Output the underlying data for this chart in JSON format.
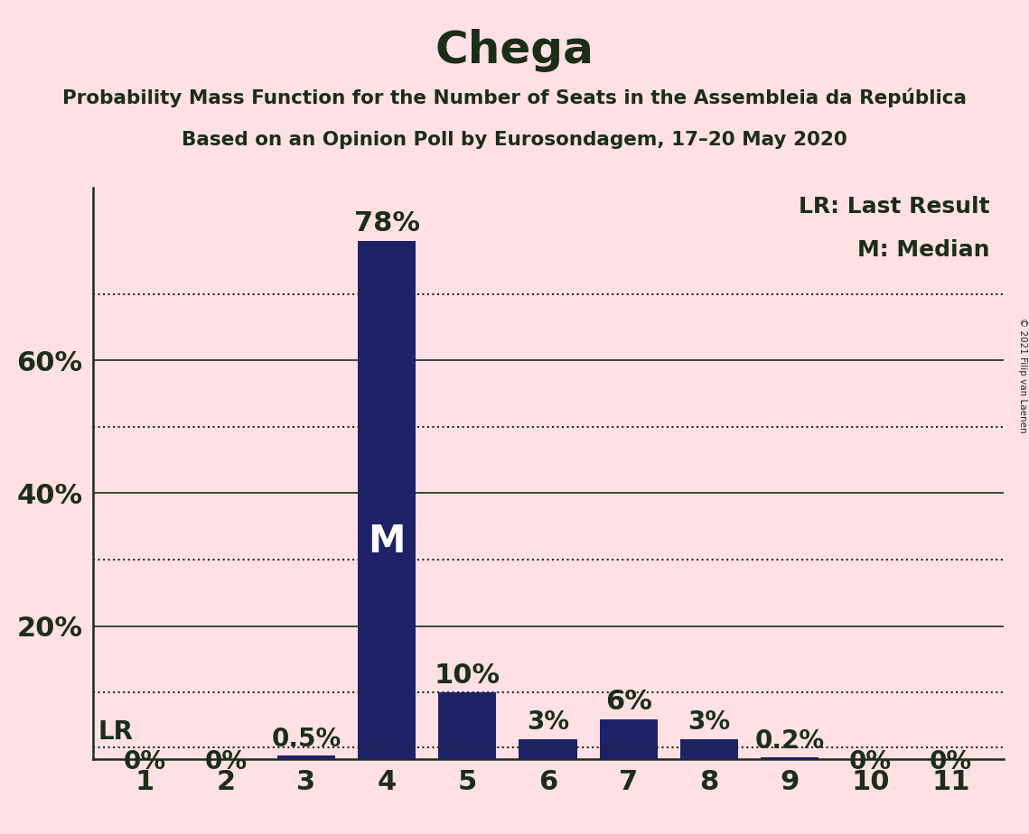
{
  "title": "Chega",
  "subtitle1": "Probability Mass Function for the Number of Seats in the Assembleia da República",
  "subtitle2": "Based on an Opinion Poll by Eurosondagem, 17–20 May 2020",
  "copyright": "© 2021 Filip van Laenen",
  "seats": [
    1,
    2,
    3,
    4,
    5,
    6,
    7,
    8,
    9,
    10,
    11
  ],
  "probabilities": [
    0.0,
    0.0,
    0.005,
    0.78,
    0.1,
    0.03,
    0.06,
    0.03,
    0.002,
    0.0,
    0.0
  ],
  "labels": [
    "0%",
    "0%",
    "0.5%",
    "78%",
    "10%",
    "3%",
    "6%",
    "3%",
    "0.2%",
    "0%",
    "0%"
  ],
  "bar_color": "#1e2266",
  "background_color": "#FFE0E4",
  "text_color": "#1a2e1a",
  "median_seat": 4,
  "lr_value": 0.018,
  "lr_label": "LR",
  "legend_lr": "LR: Last Result",
  "legend_m": "M: Median",
  "solid_lines": [
    0.2,
    0.4,
    0.6
  ],
  "dotted_lines": [
    0.1,
    0.3,
    0.5,
    0.7
  ],
  "yticks": [
    0.2,
    0.4,
    0.6
  ],
  "ytick_labels": [
    "20%",
    "40%",
    "60%"
  ],
  "ylim": [
    0,
    0.86
  ]
}
